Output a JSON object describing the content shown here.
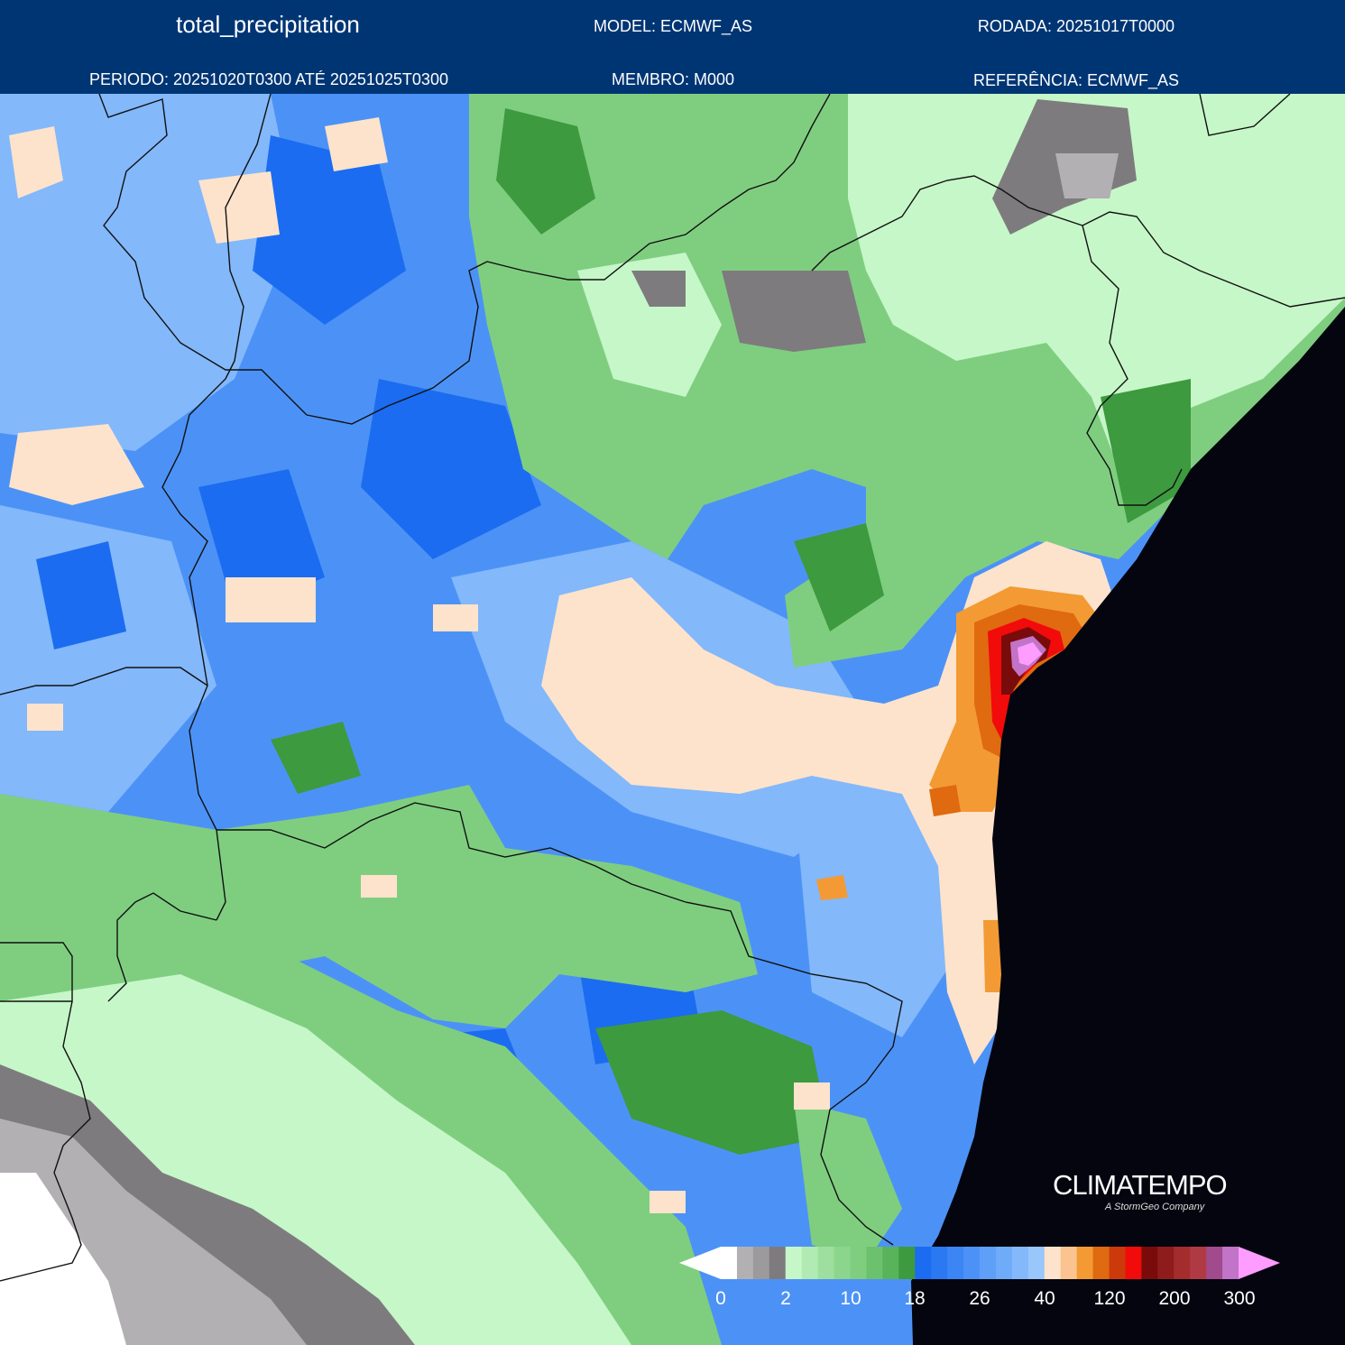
{
  "header": {
    "title": "total_precipitation",
    "model": "MODEL: ECMWF_AS",
    "rodada": "RODADA: 20251017T0000",
    "periodo": "PERIODO: 20251020T0300 ATÉ 20251025T0300",
    "membro": "MEMBRO: M000",
    "referencia": "REFERÊNCIA: ECMWF_AS"
  },
  "brand": {
    "name": "CLIMATEMPO",
    "tagline": "A StormGeo Company"
  },
  "colors": {
    "header_bg": "#003574",
    "ocean": "#04050f",
    "gray_dark": "#7e7b7e",
    "gray_light": "#b2b0b2",
    "green_light": "#c6f7c8",
    "green_mid": "#7fce80",
    "green_dark": "#3d9a3f",
    "blue_dark": "#1b6cf0",
    "blue_mid": "#4c92f6",
    "blue_light": "#83b8fb",
    "peach": "#fde3cb",
    "orange": "#f39a34",
    "red": "#f20b0b",
    "dark_red": "#7a0b0b",
    "magenta": "#c274c8",
    "pink": "#ff9cff"
  },
  "colorbar": {
    "labels": [
      "0",
      "2",
      "10",
      "18",
      "26",
      "40",
      "120",
      "200",
      "300"
    ],
    "colors": [
      "#ffffff",
      "#ffffff",
      "#b2b0b2",
      "#9c9a9c",
      "#7e7b7e",
      "#c6f7c8",
      "#b1eab2",
      "#9edf9f",
      "#8cd58d",
      "#7fce80",
      "#6cc16e",
      "#58b35a",
      "#3d9a3f",
      "#1b6cf0",
      "#2a78f2",
      "#3c85f4",
      "#4c92f6",
      "#5e9ff8",
      "#6eabf9",
      "#83b8fb",
      "#99c6fb",
      "#fde3cb",
      "#fbc38f",
      "#f39a34",
      "#df6a10",
      "#cc3a0b",
      "#f20b0b",
      "#7a0b0b",
      "#8e1c1c",
      "#a32d2d",
      "#b03a44",
      "#a14a8c",
      "#c274c8",
      "#ff9cff"
    ]
  }
}
